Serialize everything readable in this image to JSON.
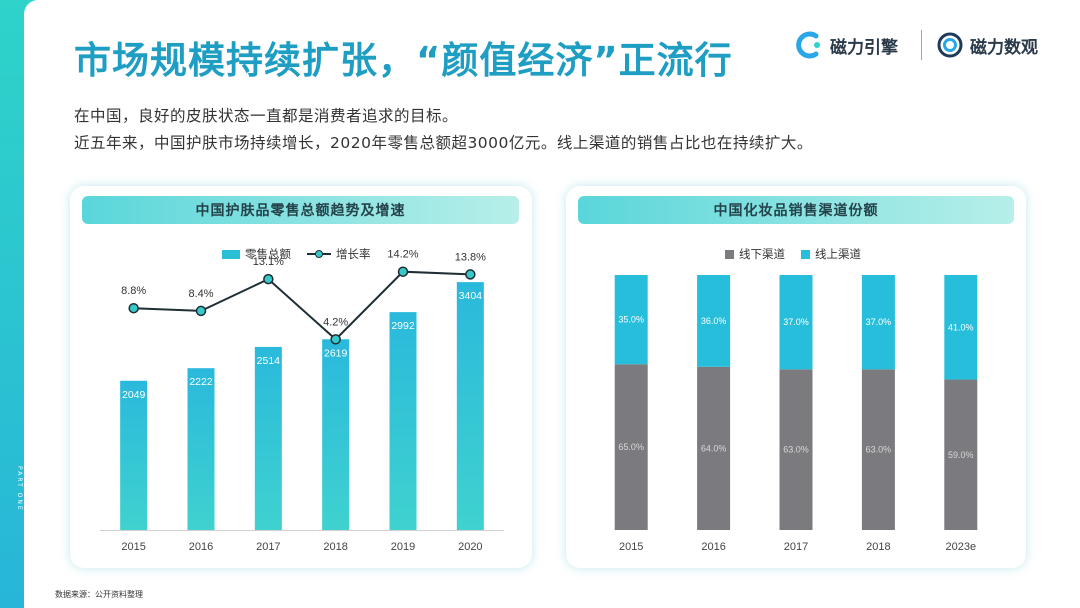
{
  "page": {
    "title": "市场规模持续扩张，“颜值经济”正流行",
    "part_label": "PART ONE",
    "intro_lines": [
      "在中国，良好的皮肤状态一直都是消费者追求的目标。",
      "近五年来，中国护肤市场持续增长，2020年零售总额超3000亿元。线上渠道的销售占比也在持续扩大。"
    ],
    "source": "数据来源：公开资料整理",
    "brands": [
      {
        "name": "磁力引擎",
        "icon": "magnet-c-logo-icon",
        "color": "#2aa7e8"
      },
      {
        "name": "磁力数观",
        "icon": "circle-lens-logo-icon",
        "color": "#1e3c5a"
      }
    ],
    "accent_color": "#1f9ec3"
  },
  "chart_data": [
    {
      "type": "bar",
      "title": "中国护肤品零售总额趋势及增速",
      "categories": [
        "2015",
        "2016",
        "2017",
        "2018",
        "2019",
        "2020"
      ],
      "series": [
        {
          "name": "零售总额",
          "kind": "bar",
          "values": [
            2049,
            2222,
            2514,
            2619,
            2992,
            3404
          ],
          "labels": [
            "2049",
            "2222",
            "2514",
            "2619",
            "2992",
            "3404"
          ],
          "color": "#2bbfd6"
        },
        {
          "name": "增长率",
          "kind": "line",
          "values": [
            8.8,
            8.4,
            13.1,
            4.2,
            14.2,
            13.8
          ],
          "labels": [
            "8.8%",
            "8.4%",
            "13.1%",
            "4.2%",
            "14.2%",
            "13.8%"
          ],
          "color": "#1f2e35",
          "marker_color": "#37c9c9"
        }
      ],
      "ylim": [
        0,
        3900
      ],
      "y2lim": [
        -24,
        18
      ],
      "legend_position": "top-center",
      "grid": false
    },
    {
      "type": "bar",
      "stacked": true,
      "title": "中国化妆品销售渠道份额",
      "categories": [
        "2015",
        "2016",
        "2017",
        "2018",
        "2023e"
      ],
      "series": [
        {
          "name": "线下渠道",
          "values": [
            65.0,
            64.0,
            63.0,
            63.0,
            59.0
          ],
          "labels": [
            "65.0%",
            "64.0%",
            "63.0%",
            "63.0%",
            "59.0%"
          ],
          "color": "#7b7b7f"
        },
        {
          "name": "线上渠道",
          "values": [
            35.0,
            36.0,
            37.0,
            37.0,
            41.0
          ],
          "labels": [
            "35.0%",
            "36.0%",
            "37.0%",
            "37.0%",
            "41.0%"
          ],
          "color": "#27bedb"
        }
      ],
      "ylim": [
        0,
        100
      ],
      "legend_position": "top-center",
      "grid": false
    }
  ]
}
